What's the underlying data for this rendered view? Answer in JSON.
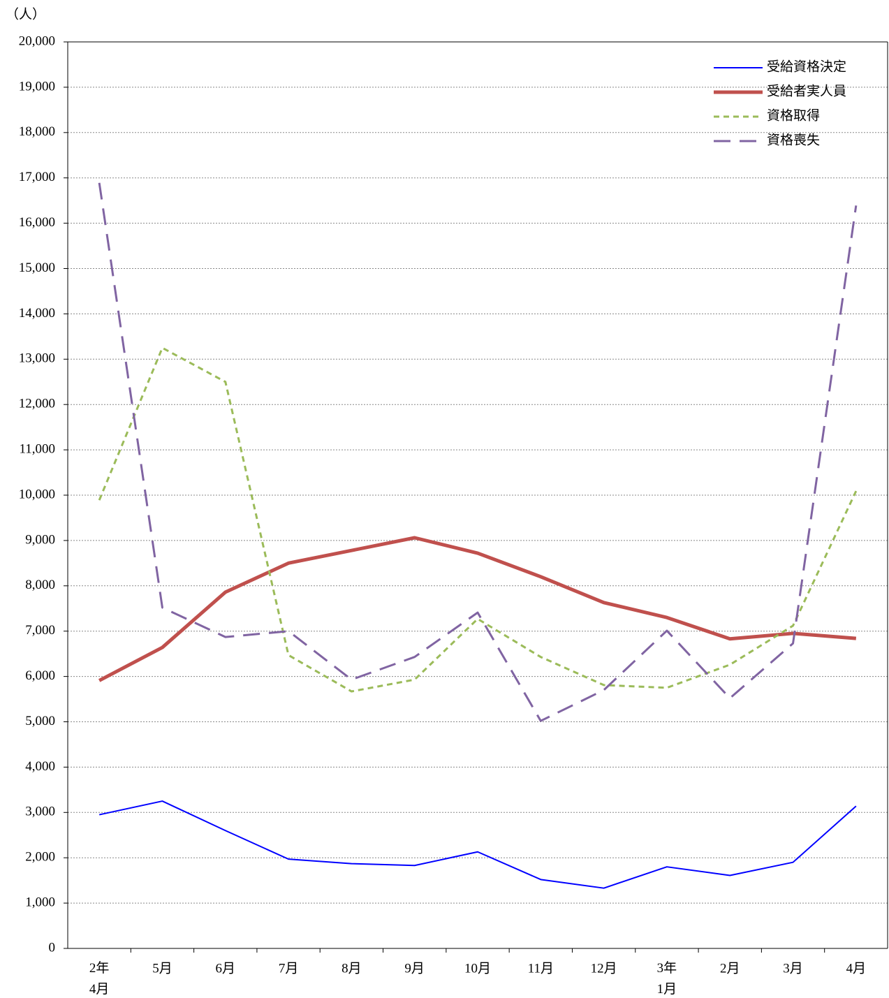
{
  "chart_data": {
    "type": "line",
    "y_label": "（人）",
    "categories": [
      "2年\n4月",
      "5月",
      "6月",
      "7月",
      "8月",
      "9月",
      "10月",
      "11月",
      "12月",
      "3年\n1月",
      "2月",
      "3月",
      "4月"
    ],
    "series": [
      {
        "name": "受給資格決定",
        "color": "#0000ff",
        "values": [
          2950,
          3250,
          2600,
          1970,
          1870,
          1830,
          2130,
          1520,
          1330,
          1800,
          1610,
          1900,
          3140
        ]
      },
      {
        "name": "受給者実人員",
        "color": "#c0504d",
        "values": [
          5910,
          6640,
          7860,
          8500,
          8780,
          9060,
          8720,
          8200,
          7630,
          7300,
          6830,
          6950,
          6840
        ]
      },
      {
        "name": "資格取得",
        "color": "#9bbb59",
        "values": [
          9890,
          13250,
          12500,
          6470,
          5670,
          5930,
          7270,
          6430,
          5810,
          5750,
          6260,
          7120,
          10090
        ]
      },
      {
        "name": "資格喪失",
        "color": "#8064a2",
        "values": [
          16890,
          7520,
          6870,
          7000,
          5930,
          6430,
          7410,
          5020,
          5700,
          7010,
          5520,
          6730,
          16390
        ]
      }
    ],
    "ylim": [
      0,
      20000
    ],
    "yticks": [
      0,
      {
        "value": 1000,
        "label": "1,000"
      },
      {
        "value": 2000,
        "label": "2,000"
      },
      {
        "value": 3000,
        "label": "3,000"
      },
      {
        "value": 4000,
        "label": "4,000"
      },
      {
        "value": 5000,
        "label": "5,000"
      },
      {
        "value": 6000,
        "label": "6,000"
      },
      {
        "value": 7000,
        "label": "7,000"
      },
      {
        "value": 8000,
        "label": "8,000"
      },
      {
        "value": 9000,
        "label": "9,000"
      },
      {
        "value": 10000,
        "label": "10,000"
      },
      {
        "value": 11000,
        "label": "11,000"
      },
      {
        "value": 12000,
        "label": "12,000"
      },
      {
        "value": 13000,
        "label": "13,000"
      },
      {
        "value": 14000,
        "label": "14,000"
      },
      {
        "value": 15000,
        "label": "15,000"
      },
      {
        "value": 16000,
        "label": "16,000"
      },
      {
        "value": 17000,
        "label": "17,000"
      },
      {
        "value": 18000,
        "label": "18,000"
      },
      {
        "value": 19000,
        "label": "19,000"
      },
      {
        "value": 20000,
        "label": "20,000"
      }
    ],
    "grid": true,
    "legend": "top-right"
  }
}
